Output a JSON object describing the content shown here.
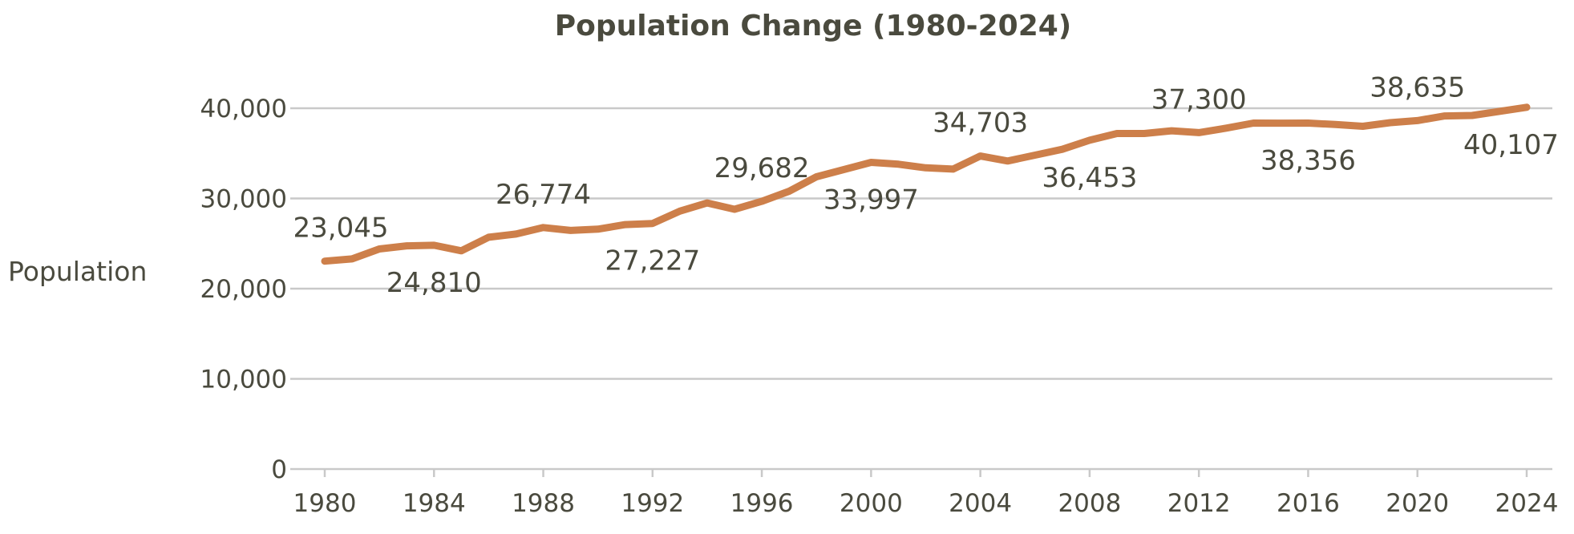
{
  "chart_data": {
    "type": "line",
    "title": "Population Change (1980-2024)",
    "xlabel": "",
    "ylabel": "Population",
    "ylim": [
      0,
      40000
    ],
    "yticks": [
      0,
      10000,
      20000,
      30000,
      40000
    ],
    "ytick_labels": [
      "0",
      "10,000",
      "20,000",
      "30,000",
      "40,000"
    ],
    "xlim": [
      1980,
      2024
    ],
    "xticks": [
      1980,
      1984,
      1988,
      1992,
      1996,
      2000,
      2004,
      2008,
      2012,
      2016,
      2020,
      2024
    ],
    "xtick_labels": [
      "1980",
      "1984",
      "1988",
      "1992",
      "1996",
      "2000",
      "2004",
      "2008",
      "2012",
      "2016",
      "2020",
      "2024"
    ],
    "grid": true,
    "legend": "none",
    "color": "#cd7f4a",
    "x": [
      1980,
      1981,
      1982,
      1983,
      1984,
      1985,
      1986,
      1987,
      1988,
      1989,
      1990,
      1991,
      1992,
      1993,
      1994,
      1995,
      1996,
      1997,
      1998,
      1999,
      2000,
      2001,
      2002,
      2003,
      2004,
      2005,
      2006,
      2007,
      2008,
      2009,
      2010,
      2011,
      2012,
      2013,
      2014,
      2015,
      2016,
      2017,
      2018,
      2019,
      2020,
      2021,
      2022,
      2023,
      2024
    ],
    "series": [
      {
        "values": [
          23045,
          23300,
          24400,
          24750,
          24810,
          24200,
          25700,
          26050,
          26774,
          26450,
          26600,
          27100,
          27227,
          28600,
          29500,
          28800,
          29682,
          30800,
          32400,
          33200,
          33997,
          33800,
          33400,
          33250,
          34703,
          34150,
          34800,
          35450,
          36453,
          37200,
          37200,
          37500,
          37300,
          37800,
          38356,
          38350,
          38356,
          38200,
          38000,
          38400,
          38635,
          39150,
          39200,
          39650,
          40107
        ]
      }
    ],
    "data_labels": [
      {
        "x": 1980,
        "text": "23,045",
        "pos": "above"
      },
      {
        "x": 1984,
        "text": "24,810",
        "pos": "below"
      },
      {
        "x": 1988,
        "text": "26,774",
        "pos": "above"
      },
      {
        "x": 1992,
        "text": "27,227",
        "pos": "below"
      },
      {
        "x": 1996,
        "text": "29,682",
        "pos": "above"
      },
      {
        "x": 2000,
        "text": "33,997",
        "pos": "below"
      },
      {
        "x": 2004,
        "text": "34,703",
        "pos": "above"
      },
      {
        "x": 2008,
        "text": "36,453",
        "pos": "below"
      },
      {
        "x": 2012,
        "text": "37,300",
        "pos": "above"
      },
      {
        "x": 2016,
        "text": "38,356",
        "pos": "below"
      },
      {
        "x": 2020,
        "text": "38,635",
        "pos": "above"
      },
      {
        "x": 2024,
        "text": "40,107",
        "pos": "below"
      }
    ]
  }
}
